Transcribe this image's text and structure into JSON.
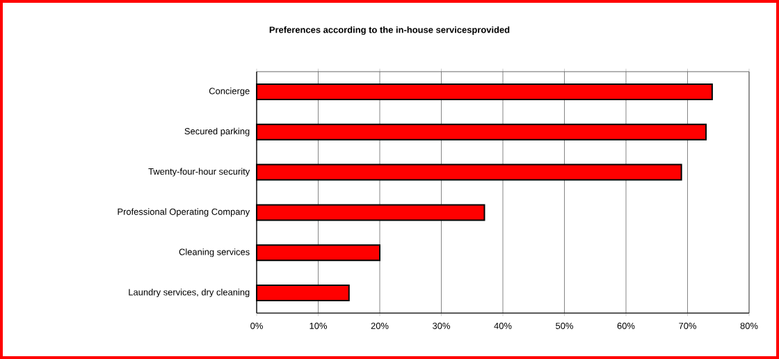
{
  "chart_data": {
    "type": "bar",
    "orientation": "horizontal",
    "title": "Preferences according to the in-house servicesprovided",
    "categories": [
      "Concierge",
      "Secured parking",
      "Twenty-four-hour security",
      "Professional Operating Company",
      "Cleaning services",
      "Laundry services, dry cleaning"
    ],
    "values": [
      74,
      73,
      69,
      37,
      20,
      15
    ],
    "color": "#ff0000",
    "xlim": [
      0,
      80
    ],
    "xticks": [
      {
        "value": 0,
        "label": "0%"
      },
      {
        "value": 10,
        "label": "10%"
      },
      {
        "value": 20,
        "label": "20%"
      },
      {
        "value": 30,
        "label": "30%"
      },
      {
        "value": 40,
        "label": "40%"
      },
      {
        "value": 50,
        "label": "50%"
      },
      {
        "value": 60,
        "label": "60%"
      },
      {
        "value": 70,
        "label": "70%"
      },
      {
        "value": 80,
        "label": "80%"
      }
    ],
    "grid": "x"
  }
}
